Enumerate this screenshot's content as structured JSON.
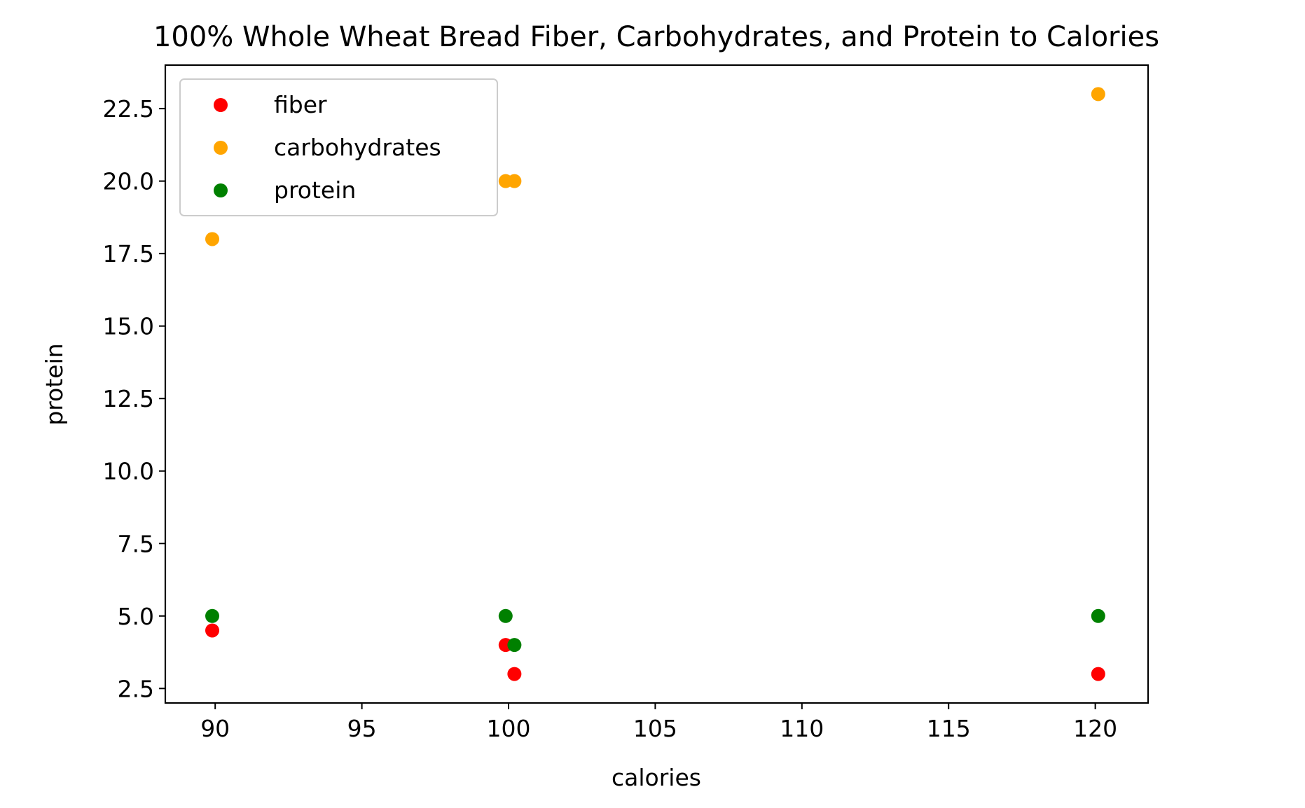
{
  "chart_data": {
    "type": "scatter",
    "title": "100% Whole Wheat Bread Fiber, Carbohydrates, and Protein to Calories",
    "xlabel": "calories",
    "ylabel": "protein",
    "xlim": [
      88.3,
      121.8
    ],
    "ylim": [
      2.0,
      24.0
    ],
    "xticks": [
      90,
      95,
      100,
      105,
      110,
      115,
      120
    ],
    "yticks": [
      2.5,
      5.0,
      7.5,
      10.0,
      12.5,
      15.0,
      17.5,
      20.0,
      22.5
    ],
    "xtick_labels": [
      "90",
      "95",
      "100",
      "105",
      "110",
      "115",
      "120"
    ],
    "ytick_labels": [
      "2.5",
      "5.0",
      "7.5",
      "10.0",
      "12.5",
      "15.0",
      "17.5",
      "20.0",
      "22.5"
    ],
    "grid": false,
    "legend_position": "top-left",
    "series": [
      {
        "name": "fiber",
        "color": "#ff0000",
        "points": [
          [
            89.9,
            4.5
          ],
          [
            99.9,
            4.0
          ],
          [
            100.2,
            3.0
          ],
          [
            120.1,
            3.0
          ]
        ]
      },
      {
        "name": "carbohydrates",
        "color": "#ffa500",
        "points": [
          [
            89.9,
            18.0
          ],
          [
            99.9,
            20.0
          ],
          [
            100.2,
            20.0
          ],
          [
            120.1,
            23.0
          ]
        ]
      },
      {
        "name": "protein",
        "color": "#008000",
        "points": [
          [
            89.9,
            5.0
          ],
          [
            99.9,
            5.0
          ],
          [
            100.2,
            4.0
          ],
          [
            120.1,
            5.0
          ]
        ]
      }
    ]
  }
}
